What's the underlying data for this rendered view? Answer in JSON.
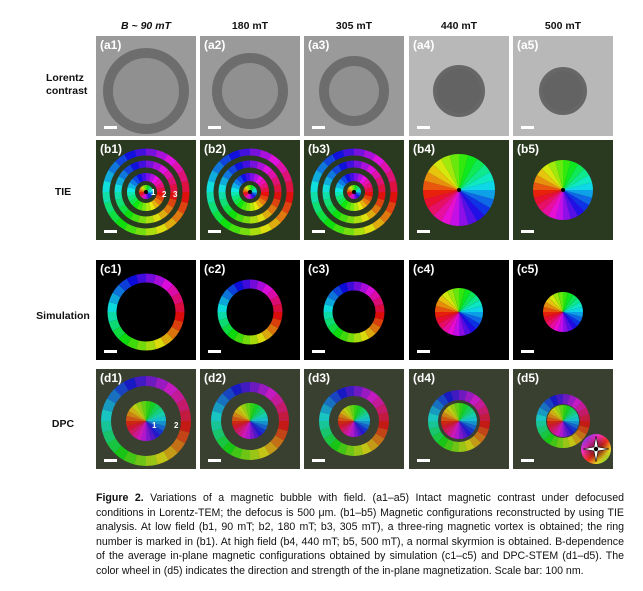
{
  "column_headers": [
    "B ~ 90 mT",
    "180 mT",
    "305 mT",
    "440 mT",
    "500 mT"
  ],
  "row_labels": [
    "Lorentz contrast",
    "TIE",
    "Simulation",
    "DPC"
  ],
  "panel_labels": [
    [
      "(a1)",
      "(a2)",
      "(a3)",
      "(a4)",
      "(a5)"
    ],
    [
      "(b1)",
      "(b2)",
      "(b3)",
      "(b4)",
      "(b5)"
    ],
    [
      "(c1)",
      "(c2)",
      "(c3)",
      "(c4)",
      "(c5)"
    ],
    [
      "(d1)",
      "(d2)",
      "(d3)",
      "(d4)",
      "(d5)"
    ]
  ],
  "ring_numbers_b1": [
    "1",
    "2",
    "3"
  ],
  "ring_numbers_d1": [
    "1",
    "2"
  ],
  "caption": {
    "heading": "Figure 2.",
    "body": "Variations of a magnetic bubble with field. (a1–a5) Intact magnetic contrast under defocused conditions in Lorentz-TEM; the defocus is 500 μm. (b1–b5) Magnetic configurations reconstructed by using TIE analysis. At low field (b1, 90 mT; b2, 180 mT; b3, 305 mT), a three-ring magnetic vortex is obtained; the ring number is marked in (b1). At high field (b4, 440 mT; b5, 500 mT), a normal skyrmion is obtained. B-dependence of the average in-plane magnetic configurations obtained by simulation (c1–c5) and DPC-STEM (d1–d5). The color wheel in (d5) indicates the direction and strength of the in-plane magnetization. Scale bar: 100 nm."
  },
  "colors": {
    "lorentz_bg_light": "#b8b8b8",
    "lorentz_bg_dark": "#9a9a9a",
    "lorentz_ring": "#5a5a5a",
    "black": "#000000",
    "white": "#ffffff"
  }
}
